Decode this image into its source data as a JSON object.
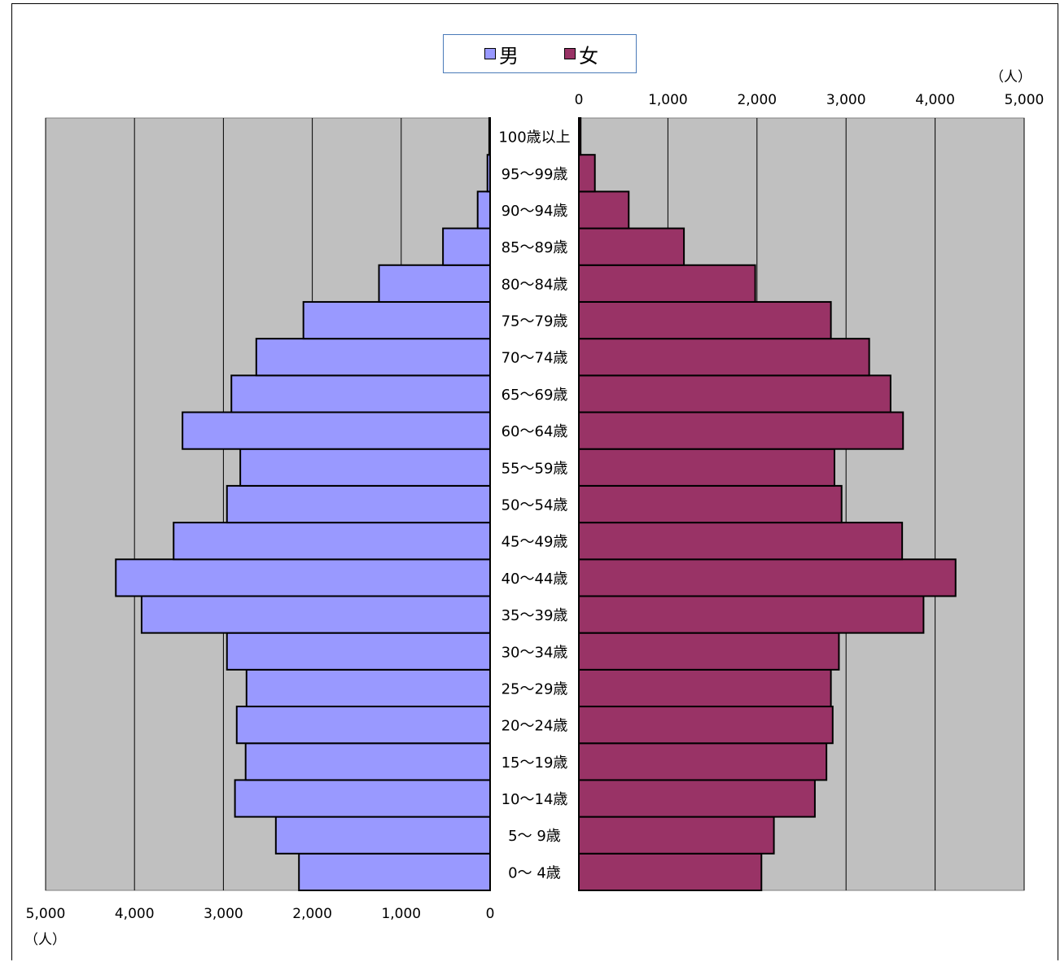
{
  "chart_data": {
    "type": "bar",
    "orientation": "horizontal",
    "layout": "population-pyramid",
    "categories": [
      "0～ 4歳",
      "5～ 9歳",
      "10～14歳",
      "15～19歳",
      "20～24歳",
      "25～29歳",
      "30～34歳",
      "35～39歳",
      "40～44歳",
      "45～49歳",
      "50～54歳",
      "55～59歳",
      "60～64歳",
      "65～69歳",
      "70～74歳",
      "75～79歳",
      "80～84歳",
      "85～89歳",
      "90～94歳",
      "95～99歳",
      "100歳以上"
    ],
    "series": [
      {
        "name": "男",
        "color": "#9999FF",
        "values": [
          2150,
          2410,
          2870,
          2750,
          2850,
          2740,
          2960,
          3920,
          4210,
          3560,
          2960,
          2810,
          3460,
          2910,
          2630,
          2100,
          1250,
          530,
          140,
          30,
          10
        ]
      },
      {
        "name": "女",
        "color": "#993366",
        "values": [
          2050,
          2190,
          2650,
          2780,
          2850,
          2830,
          2920,
          3870,
          4230,
          3630,
          2950,
          2870,
          3640,
          3500,
          3260,
          2830,
          1980,
          1180,
          560,
          180,
          20
        ]
      }
    ],
    "left_axis": {
      "ticks": [
        5000,
        4000,
        3000,
        2000,
        1000,
        0
      ],
      "tick_labels": [
        "5,000",
        "4,000",
        "3,000",
        "2,000",
        "1,000",
        "0"
      ],
      "unit": "（人）"
    },
    "right_axis": {
      "ticks": [
        0,
        1000,
        2000,
        3000,
        4000,
        5000
      ],
      "tick_labels": [
        "0",
        "1,000",
        "2,000",
        "3,000",
        "4,000",
        "5,000"
      ],
      "unit": "（人）"
    },
    "xlim": [
      0,
      5000
    ],
    "grid": true,
    "legend": {
      "position": "top-center",
      "items": [
        "男",
        "女"
      ]
    },
    "plot_background": "#C0C0C0"
  }
}
